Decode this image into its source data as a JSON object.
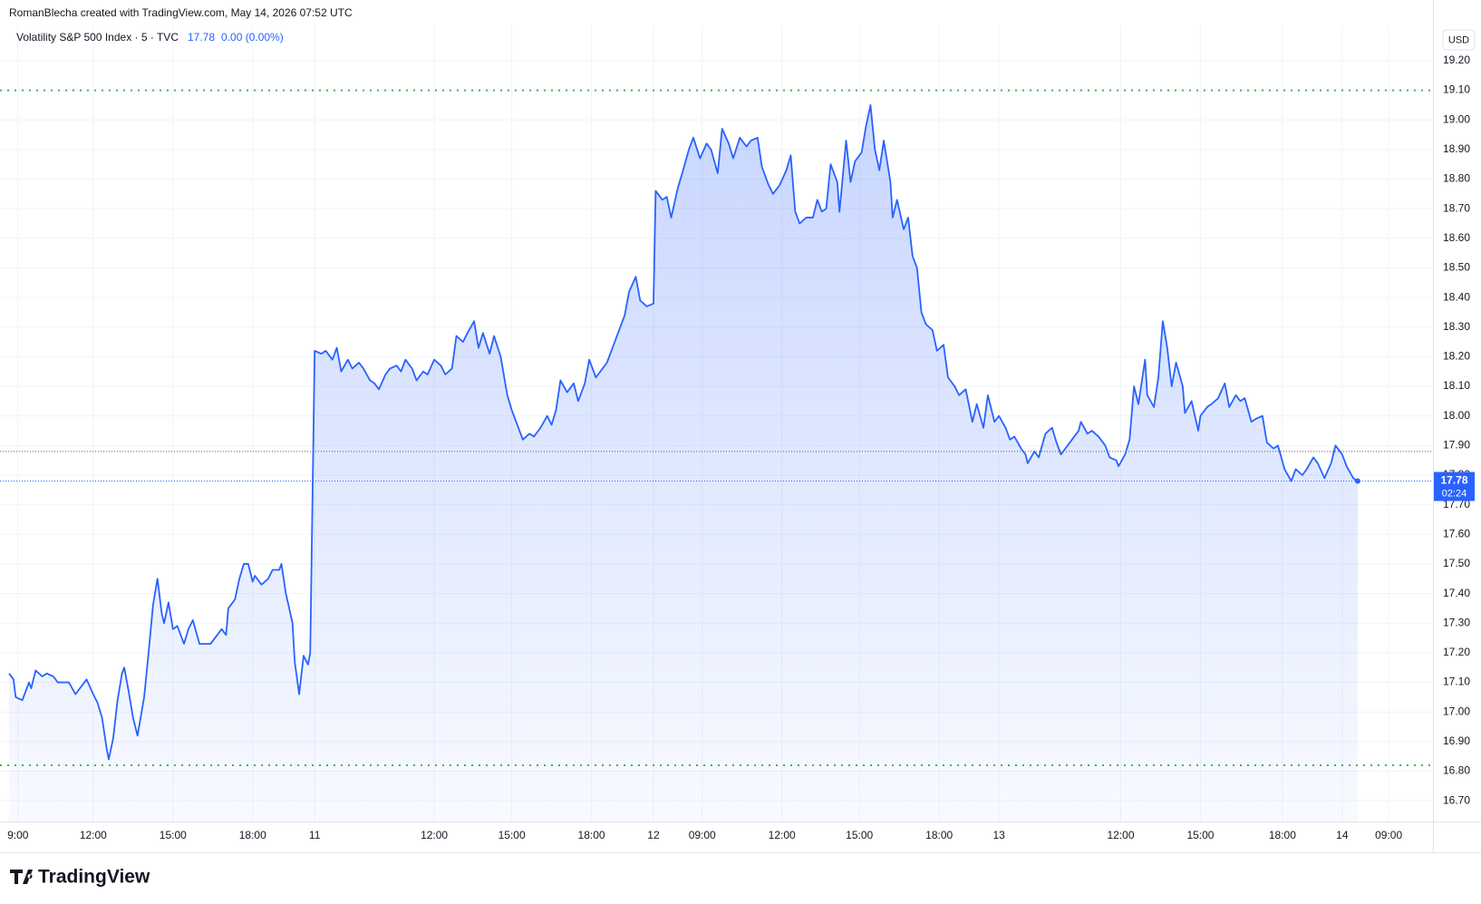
{
  "header": {
    "attribution": "RomanBlecha created with TradingView.com, May 14, 2026 07:52 UTC"
  },
  "chart_data": {
    "type": "line",
    "title": "Volatility S&P 500 Index · 5 · TVC",
    "last_value": 17.78,
    "change": "0.00 (0.00%)",
    "currency": "USD",
    "countdown": "02:24",
    "color": "#2962ff",
    "grid": true,
    "session_high": 19.1,
    "session_low": 16.82,
    "previous_close": 17.88,
    "x": [
      0,
      2,
      3,
      6,
      9,
      10,
      12,
      15,
      17,
      20,
      22,
      25,
      27,
      30,
      33,
      35,
      38,
      40,
      42,
      44,
      45,
      47,
      49,
      51,
      52,
      54,
      56,
      58,
      61,
      63,
      65,
      67,
      69,
      70,
      72,
      74,
      76,
      79,
      81,
      83,
      86,
      88,
      91,
      93,
      96,
      98,
      99,
      102,
      104,
      106,
      108,
      110,
      111,
      114,
      117,
      119,
      122,
      123,
      125,
      128,
      129,
      131,
      133,
      135,
      136,
      138,
      141,
      143,
      146,
      148,
      150,
      153,
      155,
      158,
      160,
      163,
      165,
      167,
      170,
      172,
      175,
      177,
      179,
      182,
      184,
      187,
      189,
      192,
      195,
      197,
      200,
      202,
      205,
      207,
      210,
      212,
      214,
      217,
      219,
      222,
      225,
      227,
      230,
      232,
      235,
      237,
      240,
      243,
      245,
      247,
      249,
      252,
      255,
      257,
      260,
      262,
      265,
      267,
      270,
      273,
      275,
      278,
      280,
      283,
      285,
      288,
      291,
      292,
      295,
      297,
      299,
      302,
      304,
      307,
      309,
      312,
      315,
      317,
      320,
      322,
      325,
      327,
      330,
      333,
      335,
      338,
      340,
      343,
      345,
      348,
      351,
      353,
      355,
      357,
      360,
      363,
      365,
      367,
      369,
      371,
      374,
      375,
      378,
      380,
      382,
      385,
      387,
      389,
      391,
      393,
      395,
      398,
      399,
      401,
      404,
      406,
      408,
      410,
      412,
      414,
      417,
      419,
      422,
      424,
      427,
      429,
      432,
      435,
      437,
      440,
      442,
      445,
      447,
      450,
      452,
      454,
      457,
      459,
      460,
      463,
      465,
      468,
      471,
      473,
      475,
      477,
      480,
      483,
      484,
      487,
      489,
      492,
      495,
      497,
      500,
      501,
      504,
      506,
      508,
      510,
      513,
      514,
      517,
      519,
      521,
      523,
      525,
      527,
      530,
      531,
      534,
      537,
      538,
      541,
      543,
      546,
      549,
      551,
      554,
      556,
      558,
      561,
      563,
      566,
      568,
      571,
      573,
      576,
      579,
      581,
      584,
      586,
      589,
      591,
      594,
      597,
      599,
      602,
      604,
      607,
      609
    ],
    "values": [
      17.13,
      17.11,
      17.05,
      17.04,
      17.1,
      17.08,
      17.14,
      17.12,
      17.13,
      17.12,
      17.1,
      17.1,
      17.1,
      17.06,
      17.09,
      17.11,
      17.06,
      17.03,
      16.98,
      16.88,
      16.84,
      16.91,
      17.04,
      17.13,
      17.15,
      17.07,
      16.98,
      16.92,
      17.05,
      17.2,
      17.36,
      17.45,
      17.33,
      17.3,
      17.37,
      17.28,
      17.29,
      17.23,
      17.28,
      17.31,
      17.23,
      17.23,
      17.23,
      17.25,
      17.28,
      17.26,
      17.35,
      17.38,
      17.45,
      17.5,
      17.5,
      17.44,
      17.46,
      17.43,
      17.45,
      17.48,
      17.48,
      17.5,
      17.4,
      17.3,
      17.17,
      17.06,
      17.19,
      17.16,
      17.2,
      18.22,
      18.21,
      18.22,
      18.19,
      18.23,
      18.15,
      18.19,
      18.16,
      18.18,
      18.16,
      18.12,
      18.11,
      18.09,
      18.14,
      18.16,
      18.17,
      18.15,
      18.19,
      18.16,
      18.12,
      18.15,
      18.14,
      18.19,
      18.17,
      18.14,
      18.16,
      18.27,
      18.25,
      18.28,
      18.32,
      18.23,
      18.28,
      18.21,
      18.27,
      18.2,
      18.07,
      18.02,
      17.96,
      17.92,
      17.94,
      17.93,
      17.96,
      18.0,
      17.97,
      18.02,
      18.12,
      18.08,
      18.11,
      18.05,
      18.11,
      18.19,
      18.13,
      18.15,
      18.18,
      18.24,
      18.28,
      18.34,
      18.42,
      18.47,
      18.39,
      18.37,
      18.38,
      18.76,
      18.73,
      18.74,
      18.67,
      18.77,
      18.82,
      18.9,
      18.94,
      18.87,
      18.92,
      18.9,
      18.82,
      18.97,
      18.92,
      18.87,
      18.94,
      18.91,
      18.93,
      18.94,
      18.84,
      18.78,
      18.75,
      18.78,
      18.83,
      18.88,
      18.69,
      18.65,
      18.67,
      18.67,
      18.73,
      18.69,
      18.7,
      18.85,
      18.79,
      18.69,
      18.93,
      18.79,
      18.86,
      18.89,
      18.98,
      19.05,
      18.9,
      18.83,
      18.93,
      18.79,
      18.67,
      18.73,
      18.63,
      18.67,
      18.54,
      18.5,
      18.35,
      18.31,
      18.29,
      18.22,
      18.24,
      18.13,
      18.1,
      18.07,
      18.09,
      17.98,
      18.04,
      17.96,
      18.07,
      17.98,
      18.0,
      17.96,
      17.92,
      17.93,
      17.89,
      17.87,
      17.84,
      17.88,
      17.86,
      17.94,
      17.96,
      17.91,
      17.87,
      17.89,
      17.92,
      17.95,
      17.98,
      17.94,
      17.95,
      17.93,
      17.9,
      17.86,
      17.85,
      17.83,
      17.87,
      17.92,
      18.1,
      18.04,
      18.19,
      18.07,
      18.03,
      18.13,
      18.32,
      18.23,
      18.1,
      18.18,
      18.1,
      18.01,
      18.05,
      17.95,
      18.0,
      18.03,
      18.04,
      18.06,
      18.11,
      18.03,
      18.07,
      18.05,
      18.06,
      17.98,
      17.99,
      18.0,
      17.91,
      17.89,
      17.9,
      17.82,
      17.78,
      17.82,
      17.8,
      17.82,
      17.86,
      17.84,
      17.79,
      17.84,
      17.9,
      17.87,
      17.83,
      17.79,
      17.78
    ],
    "xlim": [
      0,
      643
    ],
    "xticks": [
      {
        "value": 4,
        "label": "9:00"
      },
      {
        "value": 38,
        "label": "12:00"
      },
      {
        "value": 74,
        "label": "15:00"
      },
      {
        "value": 110,
        "label": "18:00"
      },
      {
        "value": 138,
        "label": "11"
      },
      {
        "value": 192,
        "label": "12:00"
      },
      {
        "value": 227,
        "label": "15:00"
      },
      {
        "value": 263,
        "label": "18:00"
      },
      {
        "value": 291,
        "label": "12"
      },
      {
        "value": 313,
        "label": "09:00"
      },
      {
        "value": 349,
        "label": "12:00"
      },
      {
        "value": 384,
        "label": "15:00"
      },
      {
        "value": 420,
        "label": "18:00"
      },
      {
        "value": 447,
        "label": "13"
      },
      {
        "value": 502,
        "label": "12:00"
      },
      {
        "value": 538,
        "label": "15:00"
      },
      {
        "value": 575,
        "label": "18:00"
      },
      {
        "value": 602,
        "label": "14"
      },
      {
        "value": 623,
        "label": "09:00"
      }
    ],
    "ylim": [
      16.63,
      19.31
    ],
    "yticks": [
      {
        "value": 16.7,
        "label": "16.70"
      },
      {
        "value": 16.8,
        "label": "16.80"
      },
      {
        "value": 16.9,
        "label": "16.90"
      },
      {
        "value": 17.0,
        "label": "17.00"
      },
      {
        "value": 17.1,
        "label": "17.10"
      },
      {
        "value": 17.2,
        "label": "17.20"
      },
      {
        "value": 17.3,
        "label": "17.30"
      },
      {
        "value": 17.4,
        "label": "17.40"
      },
      {
        "value": 17.5,
        "label": "17.50"
      },
      {
        "value": 17.6,
        "label": "17.60"
      },
      {
        "value": 17.7,
        "label": "17.70"
      },
      {
        "value": 17.8,
        "label": "17.80"
      },
      {
        "value": 17.9,
        "label": "17.90"
      },
      {
        "value": 18.0,
        "label": "18.00"
      },
      {
        "value": 18.1,
        "label": "18.10"
      },
      {
        "value": 18.2,
        "label": "18.20"
      },
      {
        "value": 18.3,
        "label": "18.30"
      },
      {
        "value": 18.4,
        "label": "18.40"
      },
      {
        "value": 18.5,
        "label": "18.50"
      },
      {
        "value": 18.6,
        "label": "18.60"
      },
      {
        "value": 18.7,
        "label": "18.70"
      },
      {
        "value": 18.8,
        "label": "18.80"
      },
      {
        "value": 18.9,
        "label": "18.90"
      },
      {
        "value": 19.0,
        "label": "19.00"
      },
      {
        "value": 19.1,
        "label": "19.10"
      },
      {
        "value": 19.2,
        "label": "19.20"
      }
    ]
  },
  "footer": {
    "logo": "TradingView"
  }
}
